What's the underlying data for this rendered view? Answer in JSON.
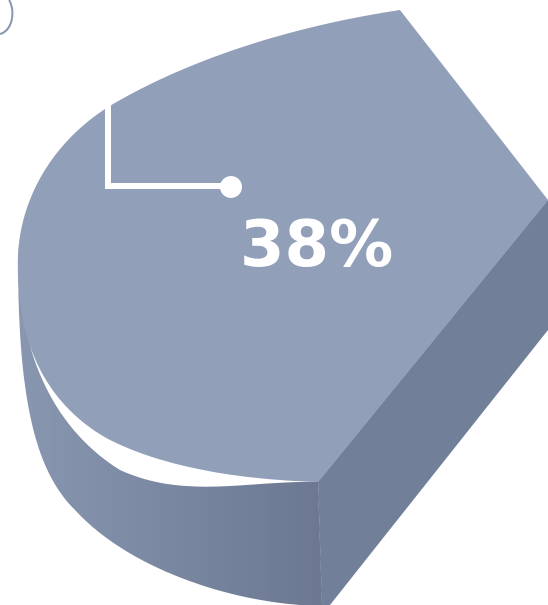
{
  "chart_data": {
    "type": "pie",
    "style": "3d-exploded-slice",
    "slices": [
      {
        "value": 38,
        "label": "38%"
      }
    ]
  },
  "colors": {
    "slice_top": "#929fb9",
    "slice_side_light": "#8896b0",
    "slice_side_dark": "#6c7891",
    "slice_cut_face": "#727f98",
    "leader_line": "#ffffff",
    "label_text": "#ffffff",
    "background": "#ffffff"
  }
}
